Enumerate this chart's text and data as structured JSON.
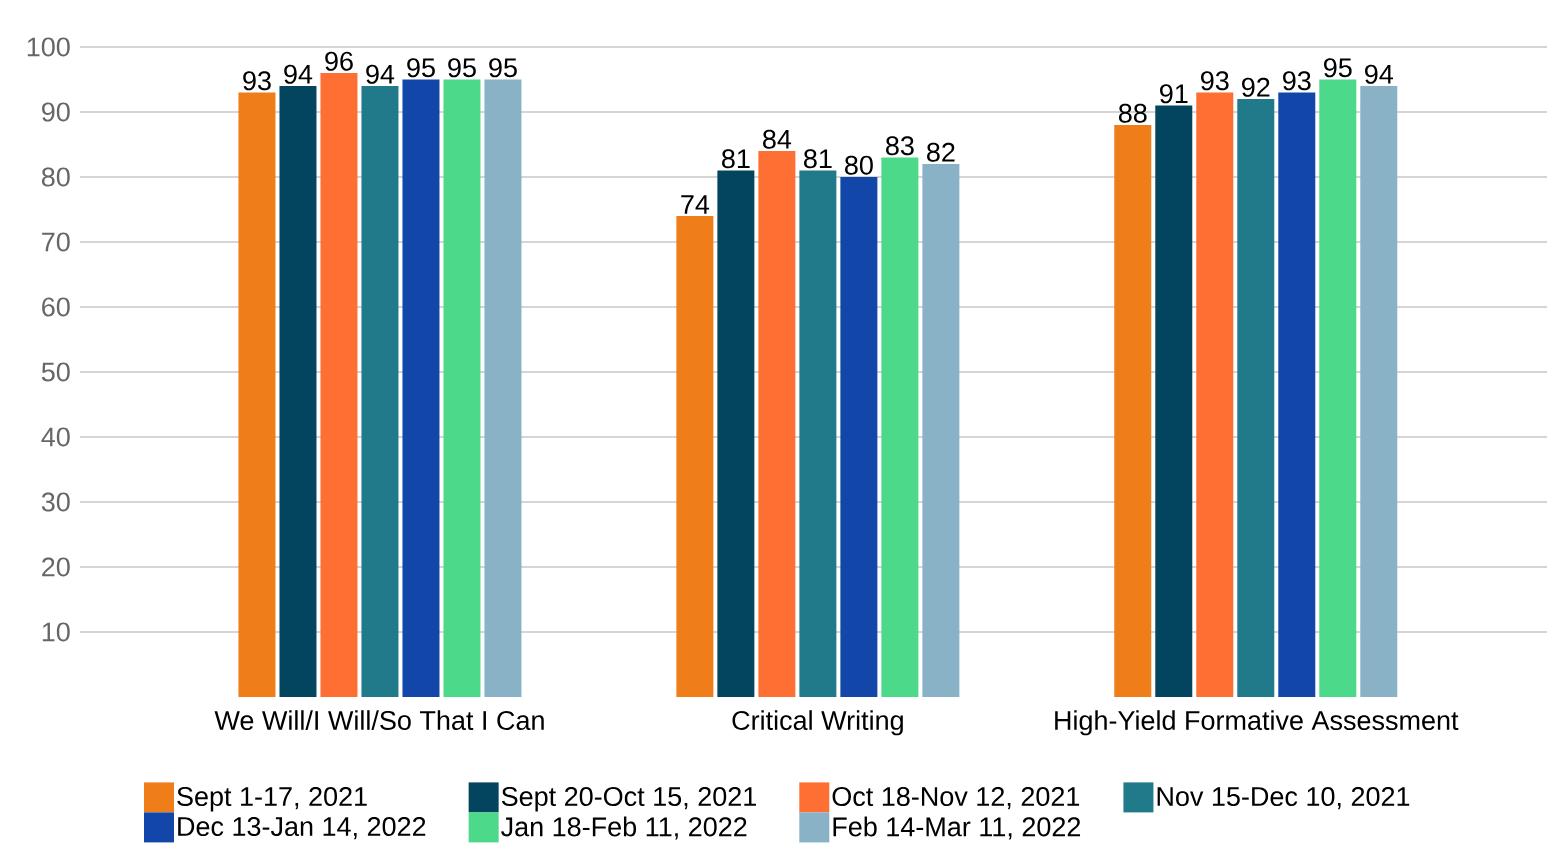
{
  "chart_data": {
    "type": "bar",
    "categories": [
      "We Will/I Will/So That I Can",
      "Critical Writing",
      "High-Yield Formative Assessment"
    ],
    "series": [
      {
        "name": "Sept 1-17, 2021",
        "color": "#ee7d1a",
        "values": [
          93,
          74,
          88
        ]
      },
      {
        "name": "Sept 20-Oct 15, 2021",
        "color": "#03455e",
        "values": [
          94,
          81,
          91
        ]
      },
      {
        "name": "Oct 18-Nov 12, 2021",
        "color": "#fe6f33",
        "values": [
          96,
          84,
          93
        ]
      },
      {
        "name": "Nov 15-Dec 10, 2021",
        "color": "#217a8a",
        "values": [
          94,
          81,
          92
        ]
      },
      {
        "name": "Dec 13-Jan 14, 2022",
        "color": "#1246a8",
        "values": [
          95,
          80,
          93
        ]
      },
      {
        "name": "Jan 18-Feb 11, 2022",
        "color": "#4cd98a",
        "values": [
          95,
          83,
          95
        ]
      },
      {
        "name": "Feb 14-Mar 11, 2022",
        "color": "#8ab2c6",
        "values": [
          95,
          82,
          94
        ]
      }
    ],
    "ylim": [
      0,
      100
    ],
    "yticks": [
      10,
      20,
      30,
      40,
      50,
      60,
      70,
      80,
      90,
      100
    ],
    "grid": "y",
    "legend": "bottom",
    "data_labels": true
  }
}
